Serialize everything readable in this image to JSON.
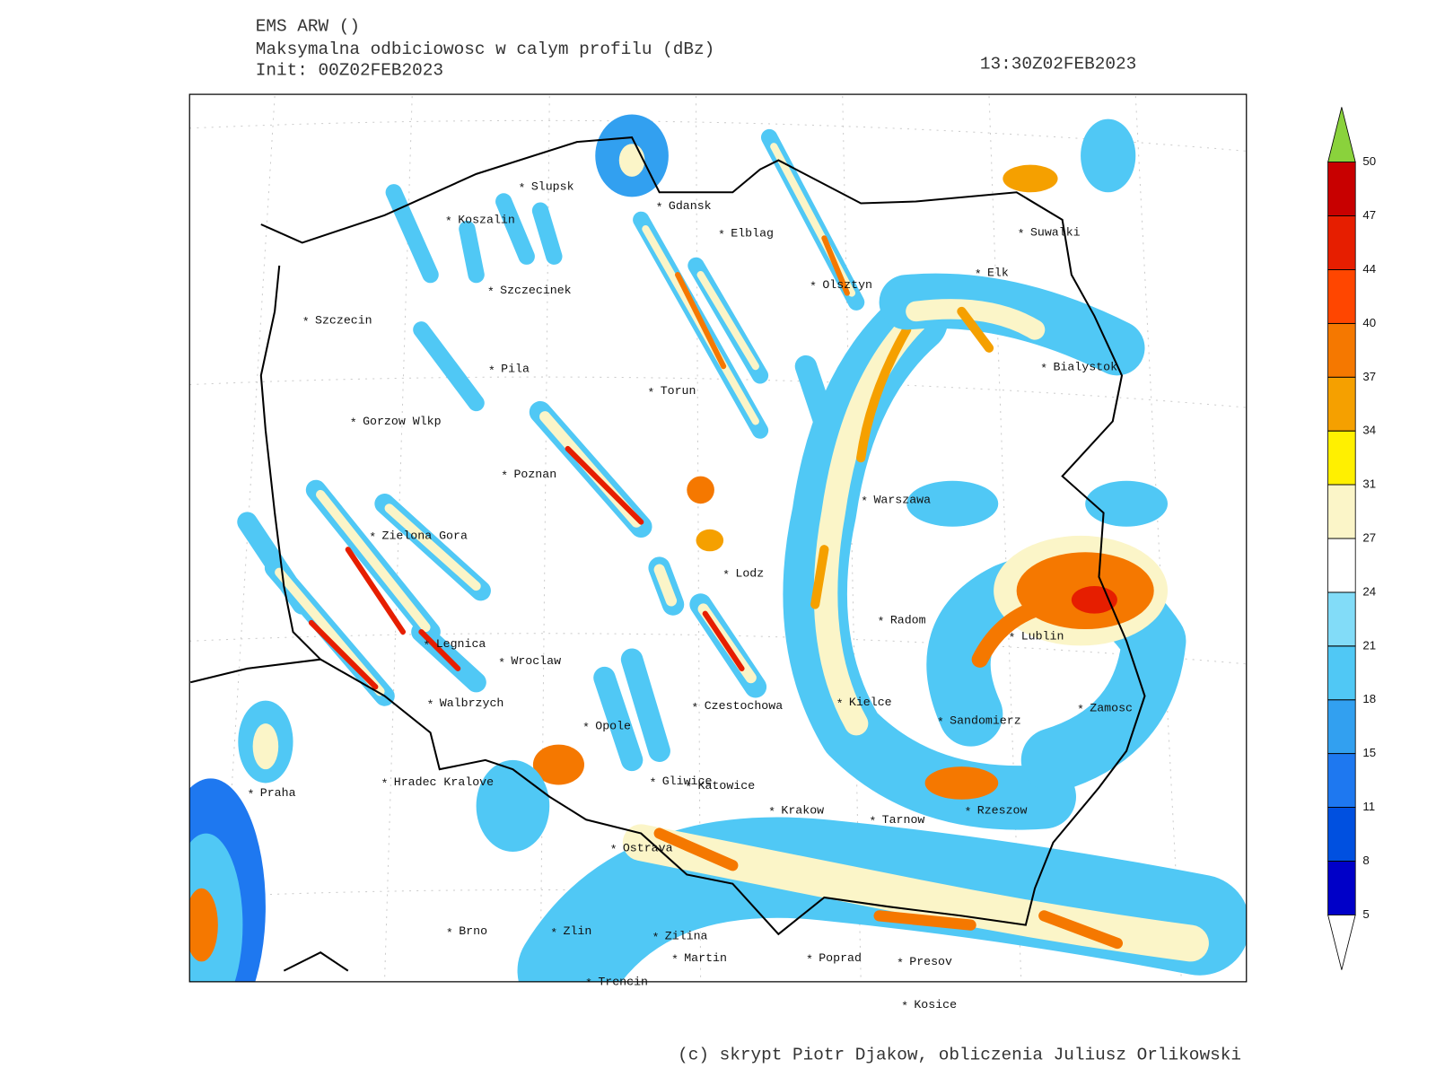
{
  "header": {
    "model": "EMS ARW ()",
    "field": "Maksymalna odbiciowosc w calym profilu (dBz)",
    "init": "Init: 00Z02FEB2023",
    "valid_time": "13:30Z02FEB2023"
  },
  "cities": [
    "Slupsk",
    "Koszalin",
    "Gdansk",
    "Elblag",
    "Suwalki",
    "Elk",
    "Olsztyn",
    "Szczecinek",
    "Szczecin",
    "Bialystok",
    "Pila",
    "Torun",
    "Gorzow Wlkp",
    "Poznan",
    "Warszawa",
    "Zielona Gora",
    "Lodz",
    "Radom",
    "Lublin",
    "Legnica",
    "Wroclaw",
    "Kielce",
    "Walbrzych",
    "Czestochowa",
    "Zamosc",
    "Sandomierz",
    "Opole",
    "Gliwice",
    "Katowice",
    "Hradec Kralove",
    "Praha",
    "Krakow",
    "Tarnow",
    "Rzeszow",
    "Ostrava",
    "Brno",
    "Zlin",
    "Zilina",
    "Martin",
    "Poprad",
    "Presov",
    "Trencin",
    "Kosice"
  ],
  "colorbar": {
    "levels": [
      5,
      8,
      11,
      15,
      18,
      21,
      24,
      27,
      31,
      34,
      37,
      40,
      44,
      47,
      50
    ],
    "colors": [
      "#0000c8",
      "#0050e0",
      "#1e78f0",
      "#32a0f0",
      "#50c8f5",
      "#82dcf8",
      "#ffffff",
      "#fbf5c8",
      "#fff000",
      "#f5a000",
      "#f57800",
      "#ff4600",
      "#e61e00",
      "#c80000"
    ],
    "over_color": "#8ad23c",
    "under_color": "#ffffff"
  },
  "credit": "(c) skrypt Piotr Djakow, obliczenia Juliusz Orlikowski"
}
